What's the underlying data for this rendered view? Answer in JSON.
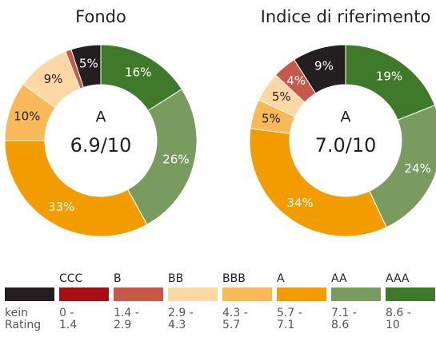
{
  "chart_data": [
    {
      "type": "donut",
      "title": "Fondo",
      "center_label": "A",
      "center_value": "6.9/10",
      "categories": [
        "AAA",
        "AA",
        "A",
        "BBB",
        "BB",
        "B",
        "kein Rating"
      ],
      "values": [
        16,
        26,
        33,
        10,
        9,
        1,
        5
      ],
      "value_labels": [
        "16%",
        "26%",
        "33%",
        "10%",
        "9%",
        null,
        "5%"
      ],
      "colors": [
        "#3f7a2a",
        "#7a9b5f",
        "#f39c00",
        "#f8b959",
        "#fdd7a4",
        "#c5594a",
        "#231f20"
      ]
    },
    {
      "type": "donut",
      "title": "Indice di riferimento",
      "center_label": "A",
      "center_value": "7.0/10",
      "categories": [
        "AAA",
        "AA",
        "A",
        "BBB",
        "BB",
        "B",
        "kein Rating"
      ],
      "values": [
        19,
        24,
        34,
        5,
        5,
        4,
        9
      ],
      "value_labels": [
        "19%",
        "24%",
        "34%",
        "5%",
        "5%",
        "4%",
        "9%"
      ],
      "colors": [
        "#3f7a2a",
        "#7a9b5f",
        "#f39c00",
        "#f8b959",
        "#fdd7a4",
        "#c5594a",
        "#231f20"
      ]
    }
  ],
  "legend": [
    {
      "label": null,
      "range": "kein Rating",
      "color": "#231f20"
    },
    {
      "label": "CCC",
      "range": "0 - 1.4",
      "color": "#a50f15"
    },
    {
      "label": "B",
      "range": "1.4 - 2.9",
      "color": "#c5594a"
    },
    {
      "label": "BB",
      "range": "2.9 - 4.3",
      "color": "#fdd7a4"
    },
    {
      "label": "BBB",
      "range": "4.3 - 5.7",
      "color": "#f8b959"
    },
    {
      "label": "A",
      "range": "5.7 - 7.1",
      "color": "#f39c00"
    },
    {
      "label": "AA",
      "range": "7.1 - 8.6",
      "color": "#7a9b5f"
    },
    {
      "label": "AAA",
      "range": "8.6 - 10",
      "color": "#3f7a2a"
    }
  ]
}
